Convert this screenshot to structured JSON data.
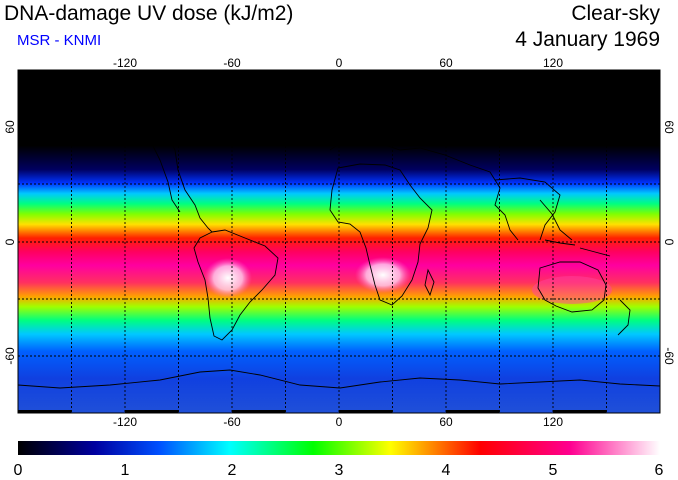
{
  "header": {
    "title": "DNA-damage UV dose (kJ/m2)",
    "source": "MSR - KNMI",
    "condition": "Clear-sky",
    "date": "4 January 1969"
  },
  "map": {
    "lon_ticks": [
      "-120",
      "-60",
      "0",
      "60",
      "120"
    ],
    "lat_ticks": [
      "60",
      "0",
      "-60"
    ],
    "lon_range": [
      -180,
      180
    ],
    "lat_range": [
      -90,
      90
    ],
    "gridlines": "dashed every 30 degrees",
    "projection": "equirectangular"
  },
  "colorbar": {
    "labels": [
      "0",
      "1",
      "2",
      "3",
      "4",
      "5",
      "6"
    ],
    "min": 0,
    "max": 6,
    "colors": [
      "#000000",
      "#0000a0",
      "#0050ff",
      "#00ffff",
      "#00ff00",
      "#ffff00",
      "#ff0000",
      "#ff0090",
      "#ffffff"
    ]
  },
  "colors": {
    "source_text": "#0000ff",
    "coastline": "#000000"
  }
}
